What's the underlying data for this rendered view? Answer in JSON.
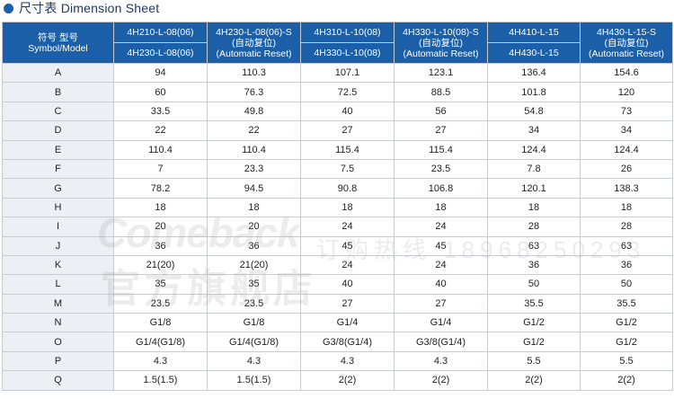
{
  "title": "尺寸表 Dimension Sheet",
  "header": {
    "symbol_label_cn": "符号 型号",
    "symbol_label_en": "Symbol/Model",
    "col1_top": "4H210-L-08(06)",
    "col1_bottom": "4H230-L-08(06)",
    "col2_line1": "4H230-L-08(06)-S",
    "col2_line2": "(自动复位)",
    "col2_line3": "(Automatic Reset)",
    "col3_top": "4H310-L-10(08)",
    "col3_bottom": "4H330-L-10(08)",
    "col4_line1": "4H330-L-10(08)-S",
    "col4_line2": "(自动复位)",
    "col4_line3": "(Automatic Reset)",
    "col5_top": "4H410-L-15",
    "col5_bottom": "4H430-L-15",
    "col6_line1": "4H430-L-15-S",
    "col6_line2": "(自动复位)",
    "col6_line3": "(Automatic Reset)"
  },
  "rows": [
    {
      "sym": "A",
      "v": [
        "94",
        "110.3",
        "107.1",
        "123.1",
        "136.4",
        "154.6"
      ]
    },
    {
      "sym": "B",
      "v": [
        "60",
        "76.3",
        "72.5",
        "88.5",
        "101.8",
        "120"
      ]
    },
    {
      "sym": "C",
      "v": [
        "33.5",
        "49.8",
        "40",
        "56",
        "54.8",
        "73"
      ]
    },
    {
      "sym": "D",
      "v": [
        "22",
        "22",
        "27",
        "27",
        "34",
        "34"
      ]
    },
    {
      "sym": "E",
      "v": [
        "110.4",
        "110.4",
        "115.4",
        "115.4",
        "124.4",
        "124.4"
      ]
    },
    {
      "sym": "F",
      "v": [
        "7",
        "23.3",
        "7.5",
        "23.5",
        "7.8",
        "26"
      ]
    },
    {
      "sym": "G",
      "v": [
        "78.2",
        "94.5",
        "90.8",
        "106.8",
        "120.1",
        "138.3"
      ]
    },
    {
      "sym": "H",
      "v": [
        "18",
        "18",
        "18",
        "18",
        "18",
        "18"
      ]
    },
    {
      "sym": "I",
      "v": [
        "20",
        "20",
        "24",
        "24",
        "28",
        "28"
      ]
    },
    {
      "sym": "J",
      "v": [
        "36",
        "36",
        "45",
        "45",
        "63",
        "63"
      ]
    },
    {
      "sym": "K",
      "v": [
        "21(20)",
        "21(20)",
        "24",
        "24",
        "36",
        "36"
      ]
    },
    {
      "sym": "L",
      "v": [
        "35",
        "35",
        "40",
        "40",
        "50",
        "50"
      ]
    },
    {
      "sym": "M",
      "v": [
        "23.5",
        "23.5",
        "27",
        "27",
        "35.5",
        "35.5"
      ]
    },
    {
      "sym": "N",
      "v": [
        "G1/8",
        "G1/8",
        "G1/4",
        "G1/4",
        "G1/2",
        "G1/2"
      ]
    },
    {
      "sym": "O",
      "v": [
        "G1/4(G1/8)",
        "G1/4(G1/8)",
        "G3/8(G1/4)",
        "G3/8(G1/4)",
        "G1/2",
        "G1/2"
      ]
    },
    {
      "sym": "P",
      "v": [
        "4.3",
        "4.3",
        "4.3",
        "4.3",
        "5.5",
        "5.5"
      ]
    },
    {
      "sym": "Q",
      "v": [
        "1.5(1.5)",
        "1.5(1.5)",
        "2(2)",
        "2(2)",
        "2(2)",
        "2(2)"
      ]
    }
  ],
  "watermark": {
    "brand": "Comeback",
    "store": "官方旗舰店",
    "hotline": "订购热线 18968250293"
  },
  "colors": {
    "header_bg": "#1a5fa8",
    "symbol_col_bg": "#eceff3",
    "bullet": "#1a5fa8"
  }
}
